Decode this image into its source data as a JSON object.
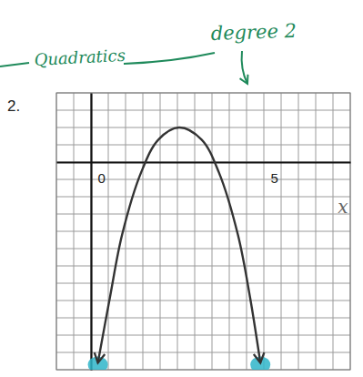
{
  "chart_data": {
    "type": "line",
    "annotations": [
      "2.",
      "Quadratics",
      "degree 2"
    ],
    "xlabel": "x",
    "x": [
      0.2,
      0.55,
      0.9,
      1.45,
      1.95,
      2.55,
      3.2,
      3.7,
      4.25,
      4.6,
      4.9
    ],
    "values": [
      -5.8,
      -3.9,
      -2.1,
      -0.3,
      0.65,
      1.0,
      0.65,
      -0.3,
      -2.1,
      -3.9,
      -5.8
    ],
    "color": "#333333",
    "xlim": [
      -1,
      7.5
    ],
    "ylim": [
      -6,
      2
    ],
    "xticks": [
      0,
      5
    ],
    "yticks": [
      -5,
      0
    ],
    "grid": true,
    "tick_labels": "x",
    "line_style": "solid"
  }
}
